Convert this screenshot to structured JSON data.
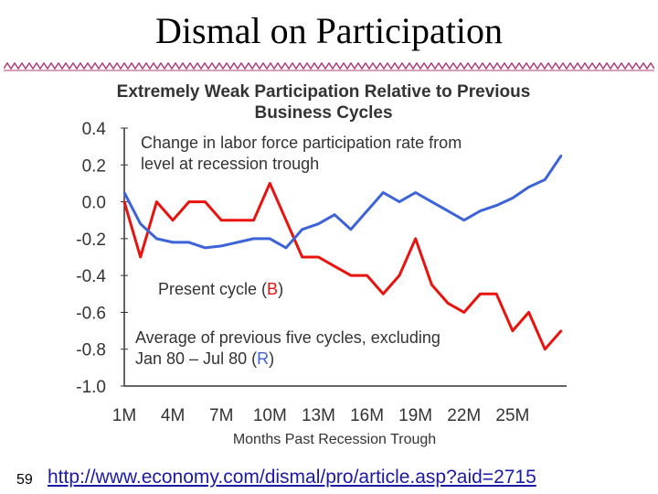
{
  "slide": {
    "title": "Dismal on Participation",
    "slide_number": "59",
    "url": "http://www.economy.com/dismal/pro/article.asp?aid=2715"
  },
  "colors": {
    "present_cycle": "#e8120e",
    "average_previous": "#3d63d8",
    "decoration": "#b03c78",
    "text": "#333333"
  },
  "chart_data": {
    "type": "line",
    "title": "Extremely Weak Participation Relative to Previous Business Cycles",
    "title_line1": "Extremely Weak Participation Relative to Previous",
    "title_line2": "Business Cycles",
    "ylabel_line1": "Change in labor force participation rate from",
    "ylabel_line2": "level at recession trough",
    "xlabel": "Months Past Recession Trough",
    "ylim": [
      -1.0,
      0.4
    ],
    "yticks": [
      "0.4",
      "0.2",
      "0.0",
      "-0.2",
      "-0.4",
      "-0.6",
      "-0.8",
      "-1.0"
    ],
    "xlim": [
      1,
      28
    ],
    "xticks": [
      "1M",
      "4M",
      "7M",
      "10M",
      "13M",
      "16M",
      "19M",
      "22M",
      "25M"
    ],
    "grid": false,
    "legend_placement": "inline annotations",
    "series": [
      {
        "name": "Present cycle (B)",
        "label_prefix": "Present cycle (",
        "label_letter": "B",
        "label_suffix": ")",
        "color": "#e8120e",
        "x": [
          1,
          2,
          3,
          4,
          5,
          6,
          7,
          8,
          9,
          10,
          11,
          12,
          13,
          14,
          15,
          16,
          17,
          18,
          19,
          20,
          21,
          22,
          23,
          24,
          25,
          26,
          27,
          28
        ],
        "y": [
          0.0,
          -0.3,
          0.0,
          -0.1,
          0.0,
          0.0,
          -0.1,
          -0.1,
          -0.1,
          0.1,
          -0.1,
          -0.3,
          -0.3,
          -0.35,
          -0.4,
          -0.4,
          -0.5,
          -0.4,
          -0.2,
          -0.45,
          -0.55,
          -0.6,
          -0.5,
          -0.5,
          -0.7,
          -0.6,
          -0.8,
          -0.7
        ]
      },
      {
        "name": "Average of previous five cycles, excluding Jan 80 – Jul 80 (R)",
        "label_line1": "Average of previous five cycles, excluding",
        "label_prefix": "Jan 80 – Jul 80 (",
        "label_letter": "R",
        "label_suffix": ")",
        "color": "#3d63d8",
        "x": [
          1,
          2,
          3,
          4,
          5,
          6,
          7,
          8,
          9,
          10,
          11,
          12,
          13,
          14,
          15,
          16,
          17,
          18,
          19,
          20,
          21,
          22,
          23,
          24,
          25,
          26,
          27,
          28
        ],
        "y": [
          0.05,
          -0.12,
          -0.2,
          -0.22,
          -0.22,
          -0.25,
          -0.24,
          -0.22,
          -0.2,
          -0.2,
          -0.25,
          -0.15,
          -0.12,
          -0.07,
          -0.15,
          -0.05,
          0.05,
          0.0,
          0.05,
          0.0,
          -0.05,
          -0.1,
          -0.05,
          -0.02,
          0.02,
          0.08,
          0.12,
          0.25
        ]
      }
    ]
  }
}
